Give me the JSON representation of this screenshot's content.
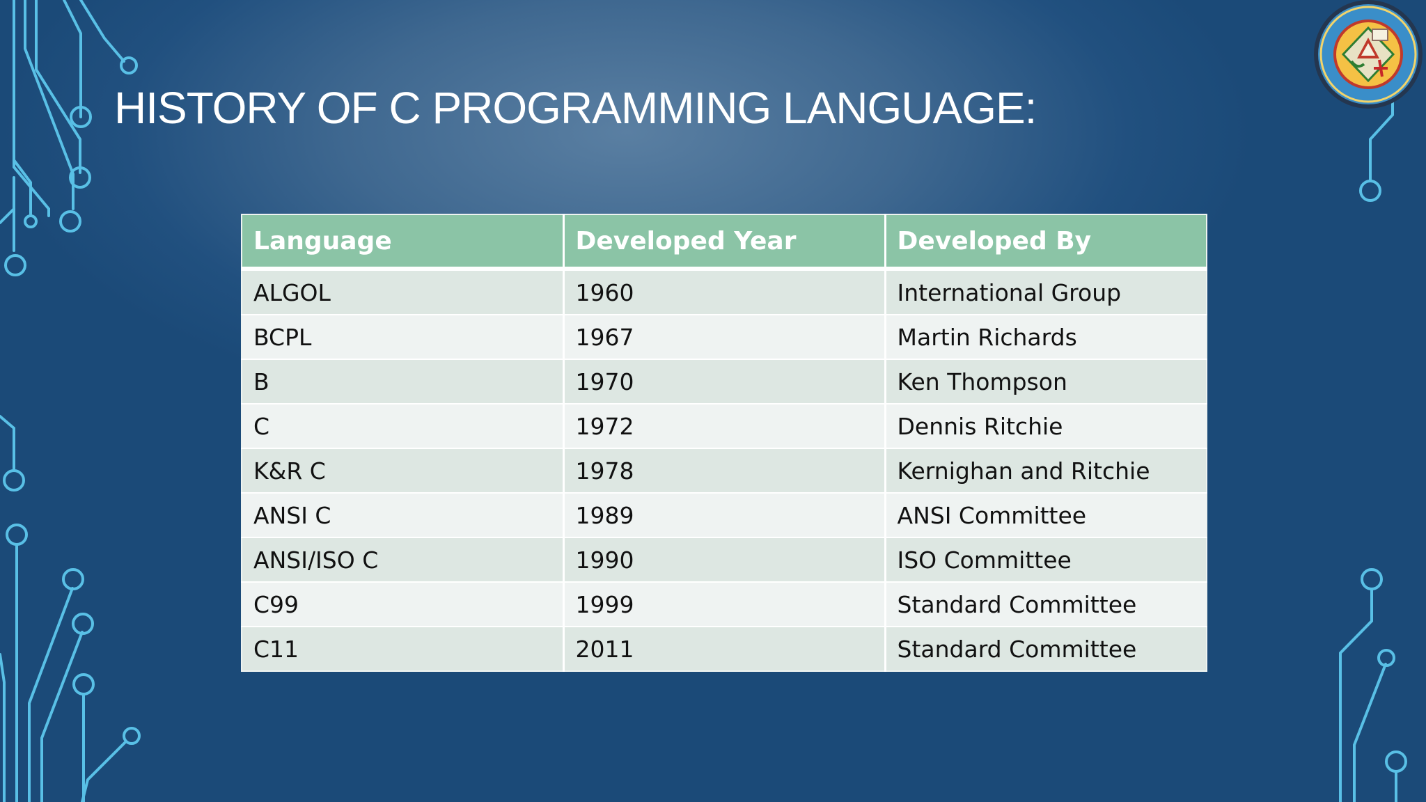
{
  "slide": {
    "title": "HISTORY OF C PROGRAMMING LANGUAGE:",
    "logo_icon": "university-seal-icon"
  },
  "table": {
    "headers": [
      "Language",
      "Developed Year",
      "Developed By"
    ],
    "rows": [
      [
        "ALGOL",
        "1960",
        "International Group"
      ],
      [
        "BCPL",
        "1967",
        "Martin Richards"
      ],
      [
        "B",
        "1970",
        "Ken Thompson"
      ],
      [
        "C",
        "1972",
        "Dennis Ritchie"
      ],
      [
        "K&R C",
        "1978",
        "Kernighan and Ritchie"
      ],
      [
        "ANSI C",
        "1989",
        "ANSI Committee"
      ],
      [
        "ANSI/ISO C",
        "1990",
        "ISO Committee"
      ],
      [
        "C99",
        "1999",
        "Standard Committee"
      ],
      [
        "C11",
        "2011",
        "Standard Committee"
      ]
    ]
  },
  "colors": {
    "background": "#21507f",
    "header": "#8bc4a6",
    "row_odd": "#dde7e2",
    "row_even": "#eff3f2",
    "circuit_lines": "#5fc8e8"
  }
}
